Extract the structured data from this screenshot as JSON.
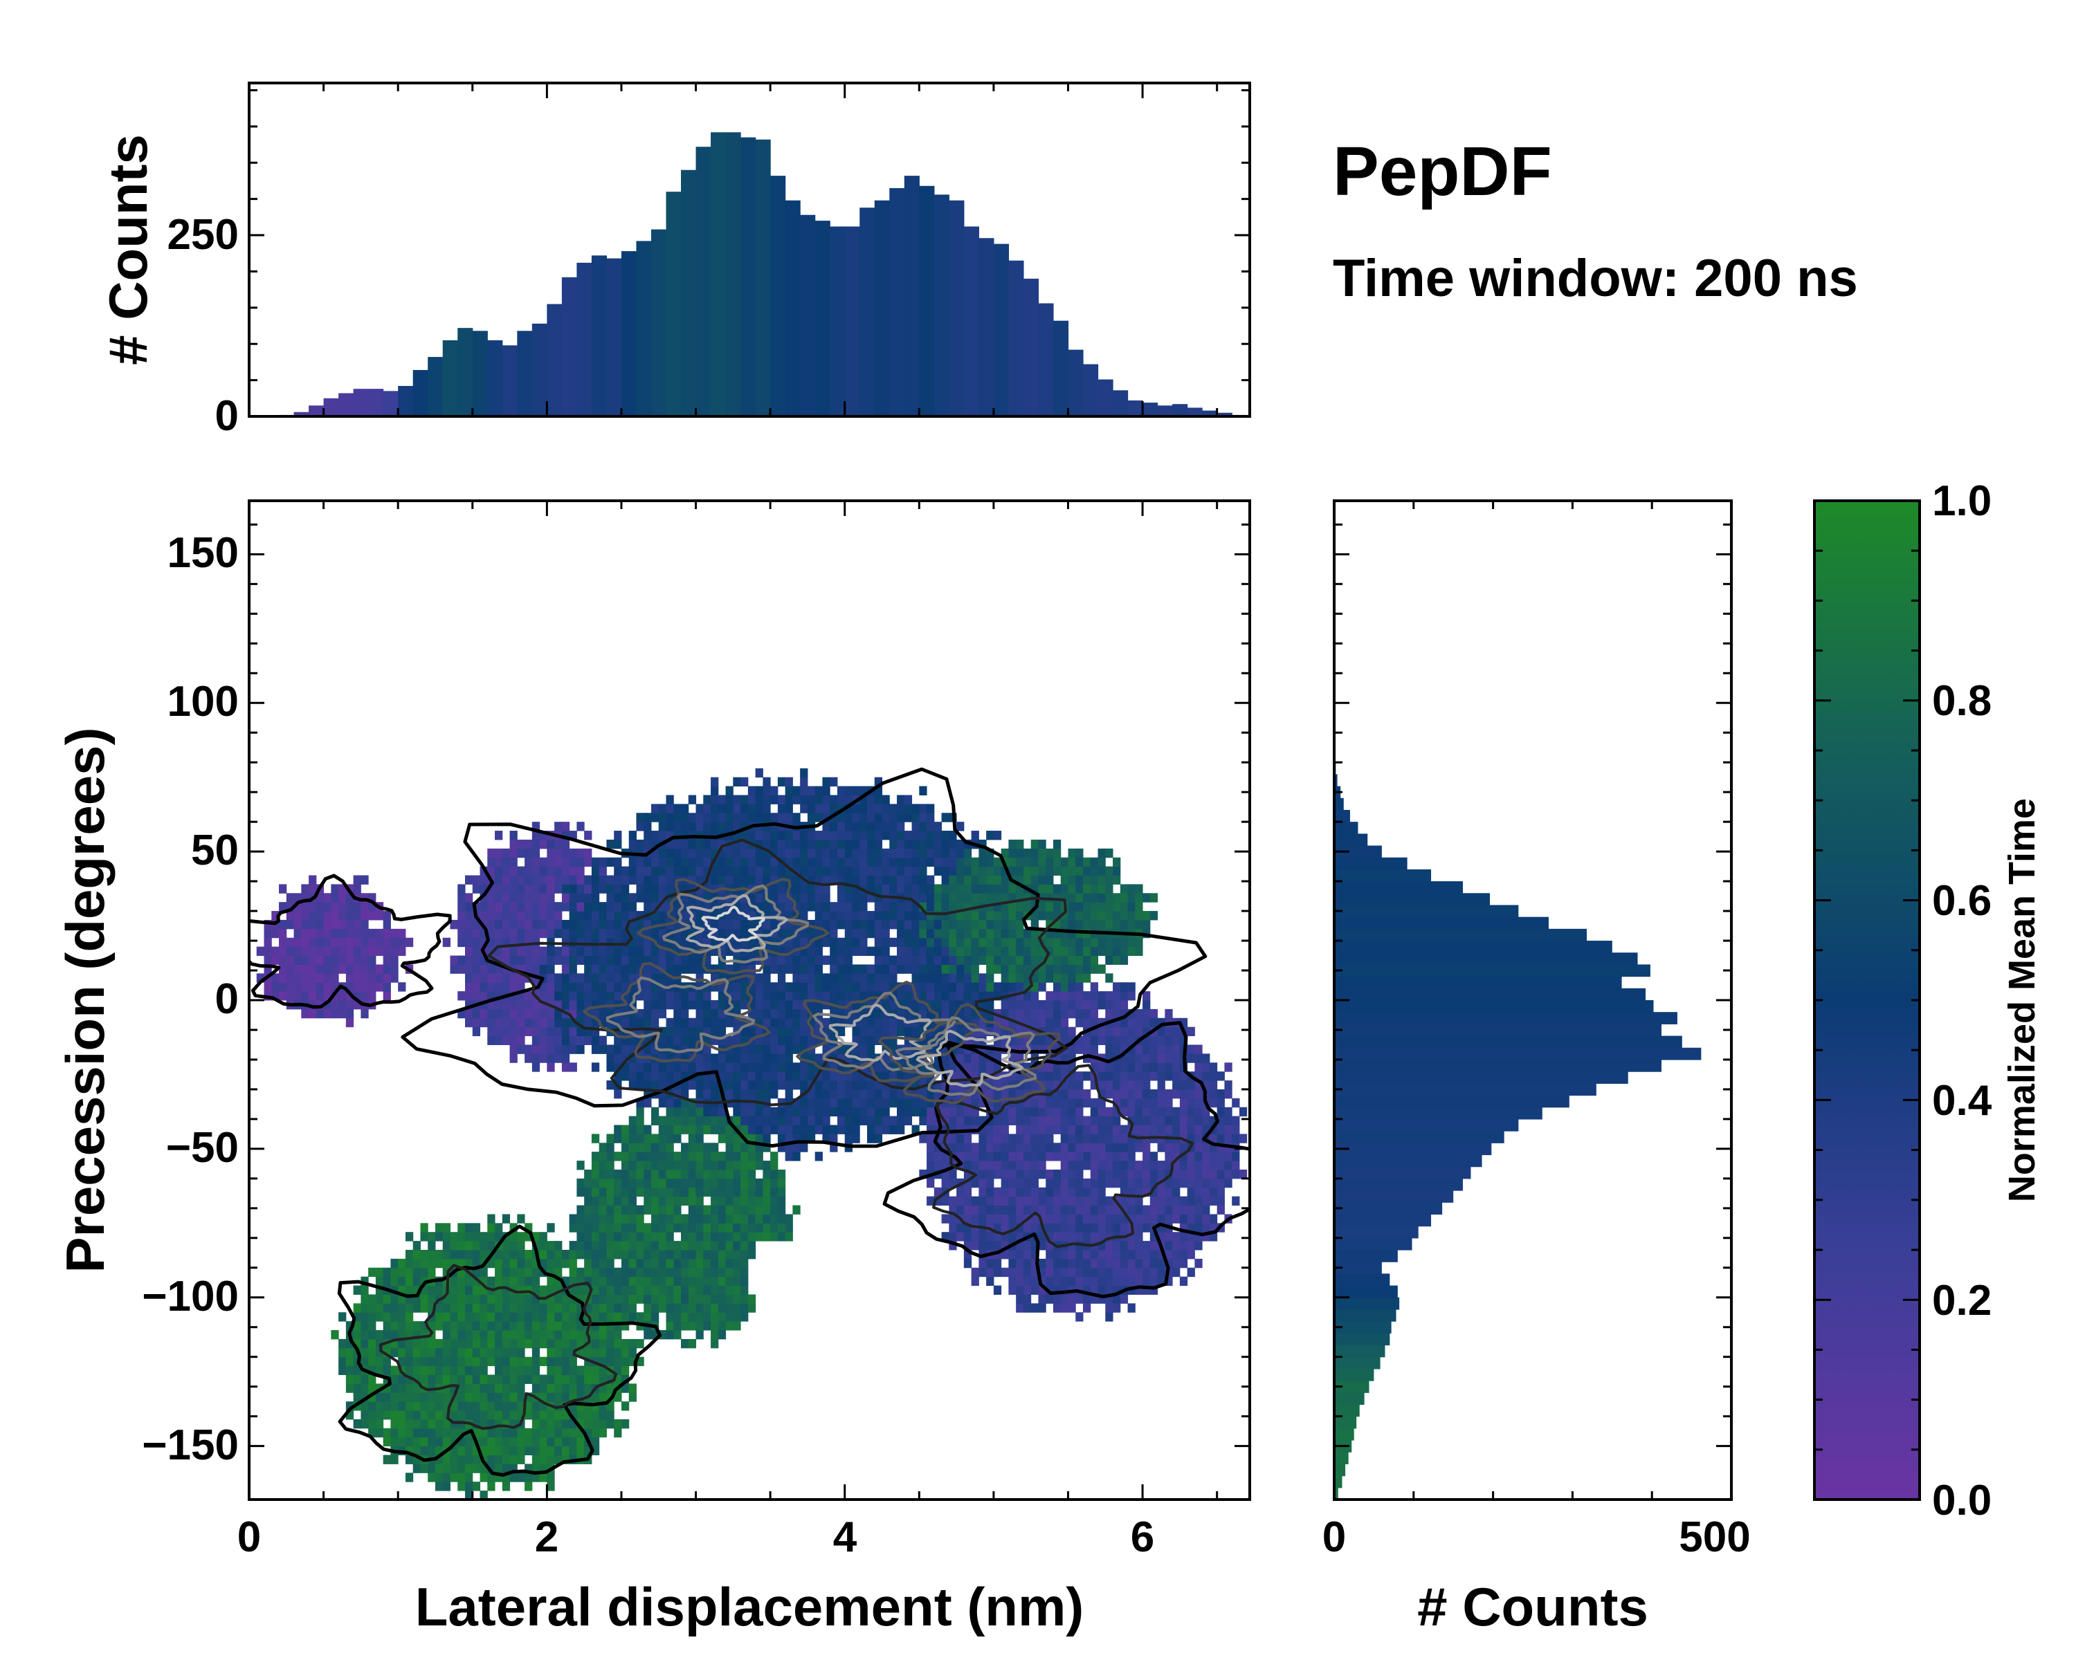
{
  "panel": {
    "title": "PepDF",
    "subtitle": "Time window: 200 ns"
  },
  "colors": {
    "low": "#6a34a3",
    "mid": "#003c70",
    "high": "#1e8a28",
    "axis": "#000000"
  },
  "chart_data": [
    {
      "id": "joint",
      "type": "heatmap",
      "xlabel": "Lateral displacement (nm)",
      "ylabel": "Precession (degrees)",
      "xlim": [
        0,
        6.72
      ],
      "ylim": [
        -168,
        168
      ],
      "xticks": [
        "0",
        "2",
        "4",
        "6"
      ],
      "yticks": [
        "150",
        "100",
        "50",
        "0",
        "−50",
        "−100",
        "−150"
      ],
      "color_regions": [
        {
          "name": "left tail",
          "x": [
            0.1,
            1.0
          ],
          "y": [
            -5,
            40
          ],
          "mean_time": 0.15
        },
        {
          "name": "upper-left lobe",
          "x": [
            1.5,
            2.6
          ],
          "y": [
            -30,
            52
          ],
          "mean_time": 0.2
        },
        {
          "name": "central core",
          "x": [
            2.6,
            5.3
          ],
          "y": [
            -45,
            60
          ],
          "mean_time": 0.45
        },
        {
          "name": "upper-right green patch",
          "x": [
            4.8,
            6.1
          ],
          "y": [
            10,
            45
          ],
          "mean_time": 0.8
        },
        {
          "name": "right lobe",
          "x": [
            4.8,
            6.7
          ],
          "y": [
            -110,
            -10
          ],
          "mean_time": 0.28
        },
        {
          "name": "lower-left green cluster",
          "x": [
            0.6,
            2.7
          ],
          "y": [
            -165,
            -75
          ],
          "mean_time": 0.85
        },
        {
          "name": "lower-center green band",
          "x": [
            2.2,
            3.6
          ],
          "y": [
            -110,
            -50
          ],
          "mean_time": 0.8
        }
      ],
      "density_peaks": [
        {
          "x": 3.25,
          "y": 25,
          "level": "highest"
        },
        {
          "x": 4.25,
          "y": -12,
          "level": "high"
        },
        {
          "x": 4.85,
          "y": -20,
          "level": "high"
        },
        {
          "x": 2.9,
          "y": -5,
          "level": "medium"
        }
      ]
    },
    {
      "id": "top-marginal",
      "type": "bar",
      "xlabel": "",
      "ylabel": "# Counts",
      "xlim": [
        0,
        6.72
      ],
      "ylim": [
        0,
        460
      ],
      "yticks": [
        "0",
        "250"
      ],
      "bin_width": 0.1,
      "x": [
        0.05,
        0.15,
        0.25,
        0.35,
        0.45,
        0.55,
        0.65,
        0.75,
        0.85,
        0.95,
        1.05,
        1.15,
        1.25,
        1.35,
        1.45,
        1.55,
        1.65,
        1.75,
        1.85,
        1.95,
        2.05,
        2.15,
        2.25,
        2.35,
        2.45,
        2.55,
        2.65,
        2.75,
        2.85,
        2.95,
        3.05,
        3.15,
        3.25,
        3.35,
        3.45,
        3.55,
        3.65,
        3.75,
        3.85,
        3.95,
        4.05,
        4.15,
        4.25,
        4.35,
        4.45,
        4.55,
        4.65,
        4.75,
        4.85,
        4.95,
        5.05,
        5.15,
        5.25,
        5.35,
        5.45,
        5.55,
        5.65,
        5.75,
        5.85,
        5.95,
        6.05,
        6.15,
        6.25,
        6.35,
        6.45,
        6.55,
        6.65
      ],
      "values": [
        0,
        0,
        2,
        6,
        15,
        25,
        32,
        38,
        38,
        35,
        42,
        64,
        82,
        105,
        122,
        118,
        105,
        98,
        118,
        128,
        155,
        192,
        212,
        222,
        218,
        228,
        242,
        258,
        310,
        340,
        372,
        392,
        392,
        385,
        382,
        332,
        298,
        278,
        270,
        262,
        262,
        288,
        298,
        315,
        332,
        318,
        306,
        298,
        262,
        246,
        238,
        215,
        190,
        156,
        132,
        92,
        72,
        51,
        36,
        22,
        19,
        15,
        17,
        12,
        8,
        5,
        2
      ],
      "mean_time": [
        0.1,
        0.1,
        0.12,
        0.14,
        0.15,
        0.16,
        0.17,
        0.18,
        0.2,
        0.25,
        0.45,
        0.5,
        0.55,
        0.62,
        0.6,
        0.55,
        0.45,
        0.4,
        0.45,
        0.42,
        0.4,
        0.38,
        0.4,
        0.45,
        0.42,
        0.5,
        0.55,
        0.58,
        0.62,
        0.6,
        0.58,
        0.62,
        0.6,
        0.55,
        0.58,
        0.52,
        0.5,
        0.48,
        0.5,
        0.45,
        0.42,
        0.45,
        0.48,
        0.45,
        0.46,
        0.5,
        0.45,
        0.42,
        0.4,
        0.42,
        0.45,
        0.4,
        0.38,
        0.4,
        0.45,
        0.42,
        0.4,
        0.38,
        0.4,
        0.36,
        0.4,
        0.38,
        0.4,
        0.36,
        0.4,
        0.38,
        0.36
      ]
    },
    {
      "id": "right-marginal",
      "type": "bar",
      "orientation": "horizontal",
      "xlabel": "# Counts",
      "ylabel": "",
      "xlim": [
        0,
        500
      ],
      "ylim": [
        -168,
        168
      ],
      "xticks": [
        "0",
        "500"
      ],
      "bin_width": 4,
      "y": [
        -166,
        -162,
        -158,
        -154,
        -150,
        -146,
        -142,
        -138,
        -134,
        -130,
        -126,
        -122,
        -118,
        -114,
        -110,
        -106,
        -102,
        -98,
        -94,
        -90,
        -86,
        -82,
        -78,
        -74,
        -70,
        -66,
        -62,
        -58,
        -54,
        -50,
        -46,
        -42,
        -38,
        -34,
        -30,
        -26,
        -22,
        -18,
        -14,
        -10,
        -6,
        -2,
        2,
        6,
        10,
        14,
        18,
        22,
        26,
        30,
        34,
        38,
        42,
        46,
        50,
        54,
        58,
        62,
        66,
        70,
        74,
        78
      ],
      "values": [
        5,
        10,
        14,
        18,
        22,
        25,
        28,
        32,
        38,
        44,
        50,
        58,
        64,
        70,
        72,
        78,
        82,
        80,
        70,
        60,
        80,
        98,
        106,
        122,
        136,
        150,
        162,
        172,
        186,
        198,
        214,
        232,
        262,
        296,
        330,
        370,
        412,
        462,
        438,
        412,
        432,
        402,
        392,
        362,
        398,
        382,
        350,
        318,
        270,
        232,
        196,
        162,
        122,
        92,
        60,
        42,
        30,
        20,
        12,
        8,
        4,
        2
      ],
      "mean_time": [
        0.85,
        0.85,
        0.84,
        0.85,
        0.84,
        0.85,
        0.83,
        0.82,
        0.8,
        0.82,
        0.78,
        0.75,
        0.72,
        0.65,
        0.62,
        0.6,
        0.55,
        0.5,
        0.48,
        0.45,
        0.46,
        0.44,
        0.42,
        0.43,
        0.44,
        0.42,
        0.43,
        0.42,
        0.44,
        0.43,
        0.45,
        0.44,
        0.45,
        0.46,
        0.45,
        0.46,
        0.47,
        0.46,
        0.48,
        0.47,
        0.48,
        0.5,
        0.49,
        0.5,
        0.52,
        0.5,
        0.5,
        0.52,
        0.5,
        0.52,
        0.51,
        0.5,
        0.52,
        0.5,
        0.48,
        0.5,
        0.49,
        0.48,
        0.5,
        0.48,
        0.48,
        0.46
      ]
    },
    {
      "id": "colorbar",
      "type": "colorbar",
      "label": "Normalized Mean Time",
      "range": [
        0,
        1
      ],
      "ticks": [
        "0.0",
        "0.2",
        "0.4",
        "0.6",
        "0.8",
        "1.0"
      ]
    }
  ]
}
